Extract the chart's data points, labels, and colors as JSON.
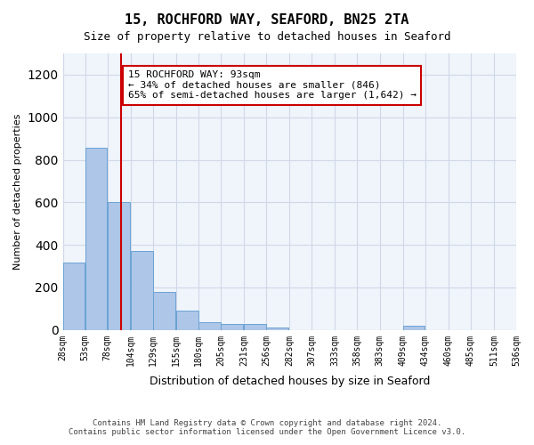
{
  "title": "15, ROCHFORD WAY, SEAFORD, BN25 2TA",
  "subtitle": "Size of property relative to detached houses in Seaford",
  "xlabel": "Distribution of detached houses by size in Seaford",
  "ylabel": "Number of detached properties",
  "footer_line1": "Contains HM Land Registry data © Crown copyright and database right 2024.",
  "footer_line2": "Contains public sector information licensed under the Open Government Licence v3.0.",
  "annotation_title": "15 ROCHFORD WAY: 93sqm",
  "annotation_line2": "← 34% of detached houses are smaller (846)",
  "annotation_line3": "65% of semi-detached houses are larger (1,642) →",
  "bar_color": "#aec6e8",
  "bar_edge_color": "#6aa3d5",
  "grid_color": "#d0d8e8",
  "annotation_box_color": "#cc0000",
  "property_line_color": "#cc0000",
  "property_line_x": 93,
  "bins": [
    28,
    53,
    78,
    104,
    129,
    155,
    180,
    205,
    231,
    256,
    282,
    307,
    333,
    358,
    383,
    409,
    434,
    460,
    485,
    511,
    536
  ],
  "bin_labels": [
    "28sqm",
    "53sqm",
    "78sqm",
    "104sqm",
    "129sqm",
    "155sqm",
    "180sqm",
    "205sqm",
    "231sqm",
    "256sqm",
    "282sqm",
    "307sqm",
    "333sqm",
    "358sqm",
    "383sqm",
    "409sqm",
    "434sqm",
    "460sqm",
    "485sqm",
    "511sqm",
    "536sqm"
  ],
  "values": [
    315,
    855,
    600,
    370,
    180,
    90,
    35,
    30,
    30,
    10,
    0,
    0,
    0,
    0,
    0,
    20,
    0,
    0,
    0,
    0
  ],
  "ylim": [
    0,
    1300
  ],
  "yticks": [
    0,
    200,
    400,
    600,
    800,
    1000,
    1200
  ],
  "background_color": "#f0f4fb"
}
